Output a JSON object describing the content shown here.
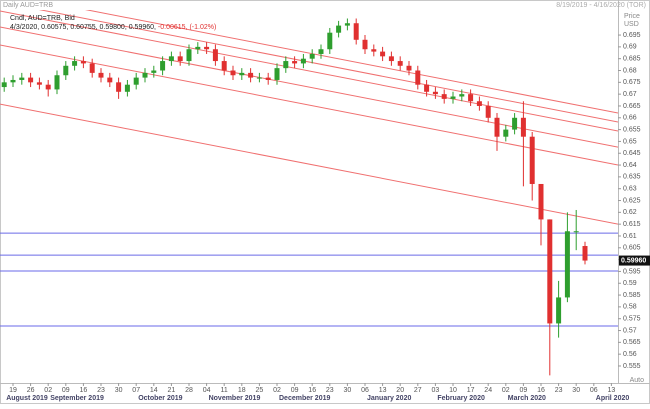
{
  "chart_data": {
    "type": "candlestick",
    "title": "Daily AUD=TRB",
    "date_range": "8/19/2019 - 4/16/2020 (TOR)",
    "y_axis_label": [
      "Price",
      "USD"
    ],
    "legend_name": "Cndl, AUD=TRB, Bid",
    "legend_values": "4/3/2020, 0.60575, 0.60755, 0.59800, 0.59960,",
    "legend_change": "-0.00615, (-1.02%)",
    "last_price_label": "0.59960",
    "scale_mode": "Auto",
    "up_color": "#2e9e2e",
    "down_color": "#e03030",
    "trend_line_color": "#f07070",
    "level_line_color": "#6a6ae8",
    "categories": [
      null,
      "19",
      null,
      "26",
      null,
      "02",
      null,
      "09",
      null,
      "16",
      null,
      "23",
      null,
      "30",
      null,
      "07",
      null,
      "14",
      null,
      "21",
      null,
      "28",
      null,
      "04",
      null,
      "11",
      null,
      "18",
      null,
      "25",
      null,
      "02",
      null,
      "09",
      null,
      "16",
      null,
      "23",
      null,
      "30",
      null,
      "06",
      null,
      "13",
      null,
      "20",
      null,
      "27",
      null,
      "03",
      null,
      "10",
      null,
      "17",
      null,
      "24",
      null,
      "02",
      null,
      "09",
      null,
      "16",
      null,
      "23",
      null,
      "30",
      null,
      "06",
      null,
      "13"
    ],
    "month_labels": [
      "August 2019",
      "September 2019",
      "October 2019",
      "November 2019",
      "December 2019",
      "January 2020",
      "February 2020",
      "March 2020",
      "April 2020"
    ],
    "open": [
      0.673,
      0.675,
      0.676,
      0.677,
      0.675,
      0.674,
      0.672,
      0.678,
      0.682,
      0.684,
      0.683,
      0.679,
      0.677,
      0.675,
      0.671,
      0.674,
      0.677,
      0.679,
      0.68,
      0.684,
      0.686,
      0.684,
      0.689,
      0.69,
      0.689,
      0.684,
      0.68,
      0.678,
      0.679,
      0.677,
      0.677,
      0.676,
      0.681,
      0.684,
      0.683,
      0.685,
      0.687,
      0.689,
      0.696,
      0.699,
      0.7,
      0.693,
      0.689,
      0.688,
      0.686,
      0.684,
      0.682,
      0.68,
      0.674,
      0.671,
      0.67,
      0.668,
      0.669,
      0.67,
      0.667,
      0.665,
      0.66,
      0.652,
      0.655,
      0.66,
      0.652,
      0.632,
      0.617,
      0.573,
      0.584,
      0.612,
      0.60575,
      null,
      null,
      null
    ],
    "high": [
      0.677,
      0.678,
      0.679,
      0.679,
      0.677,
      0.676,
      0.68,
      0.684,
      0.686,
      0.686,
      0.685,
      0.681,
      0.679,
      0.677,
      0.676,
      0.679,
      0.681,
      0.682,
      0.686,
      0.688,
      0.688,
      0.691,
      0.692,
      0.692,
      0.691,
      0.686,
      0.682,
      0.681,
      0.681,
      0.679,
      0.679,
      0.683,
      0.686,
      0.686,
      0.687,
      0.689,
      0.691,
      0.698,
      0.701,
      0.702,
      0.702,
      0.695,
      0.691,
      0.69,
      0.688,
      0.686,
      0.684,
      0.682,
      0.676,
      0.673,
      0.672,
      0.671,
      0.672,
      0.672,
      0.669,
      0.667,
      0.662,
      0.657,
      0.662,
      0.667,
      0.654,
      0.632,
      0.617,
      0.591,
      0.62,
      0.621,
      0.60755,
      null,
      null,
      null
    ],
    "low": [
      0.671,
      0.673,
      0.674,
      0.673,
      0.672,
      0.669,
      0.67,
      0.676,
      0.68,
      0.681,
      0.677,
      0.675,
      0.673,
      0.668,
      0.669,
      0.672,
      0.675,
      0.677,
      0.678,
      0.682,
      0.682,
      0.682,
      0.687,
      0.687,
      0.682,
      0.678,
      0.676,
      0.676,
      0.675,
      0.675,
      0.674,
      0.674,
      0.679,
      0.681,
      0.681,
      0.683,
      0.685,
      0.687,
      0.694,
      0.697,
      0.691,
      0.687,
      0.686,
      0.684,
      0.682,
      0.68,
      0.678,
      0.672,
      0.669,
      0.668,
      0.666,
      0.666,
      0.667,
      0.665,
      0.663,
      0.658,
      0.646,
      0.65,
      0.653,
      0.631,
      0.625,
      0.606,
      0.551,
      0.567,
      0.582,
      0.604,
      0.598,
      null,
      null,
      null
    ],
    "close": [
      0.675,
      0.676,
      0.677,
      0.675,
      0.674,
      0.672,
      0.678,
      0.682,
      0.684,
      0.683,
      0.679,
      0.677,
      0.675,
      0.671,
      0.674,
      0.677,
      0.679,
      0.68,
      0.684,
      0.686,
      0.684,
      0.689,
      0.69,
      0.689,
      0.684,
      0.68,
      0.678,
      0.679,
      0.677,
      0.677,
      0.676,
      0.681,
      0.684,
      0.683,
      0.685,
      0.687,
      0.689,
      0.696,
      0.699,
      0.7,
      0.693,
      0.689,
      0.688,
      0.686,
      0.684,
      0.682,
      0.68,
      0.674,
      0.671,
      0.67,
      0.668,
      0.669,
      0.67,
      0.667,
      0.665,
      0.66,
      0.652,
      0.655,
      0.66,
      0.652,
      0.632,
      0.617,
      0.573,
      0.584,
      0.612,
      0.612,
      0.5996,
      null,
      null,
      null
    ],
    "trend_lines": [
      [
        0.7128,
        0.662
      ],
      [
        0.709,
        0.6582
      ],
      [
        0.7052,
        0.6544
      ],
      [
        0.6984,
        0.6476
      ],
      [
        0.6908,
        0.64
      ],
      [
        0.6658,
        0.615
      ]
    ],
    "level_lines": [
      0.6112,
      0.6019,
      0.5952,
      0.5719
    ],
    "ylim": [
      0.5478,
      0.7056
    ],
    "yticks": [
      0.555,
      0.56,
      0.565,
      0.57,
      0.575,
      0.58,
      0.585,
      0.59,
      0.595,
      0.6,
      0.605,
      0.61,
      0.615,
      0.62,
      0.625,
      0.63,
      0.635,
      0.64,
      0.645,
      0.65,
      0.655,
      0.66,
      0.665,
      0.67,
      0.675,
      0.68,
      0.685,
      0.69,
      0.695
    ]
  }
}
